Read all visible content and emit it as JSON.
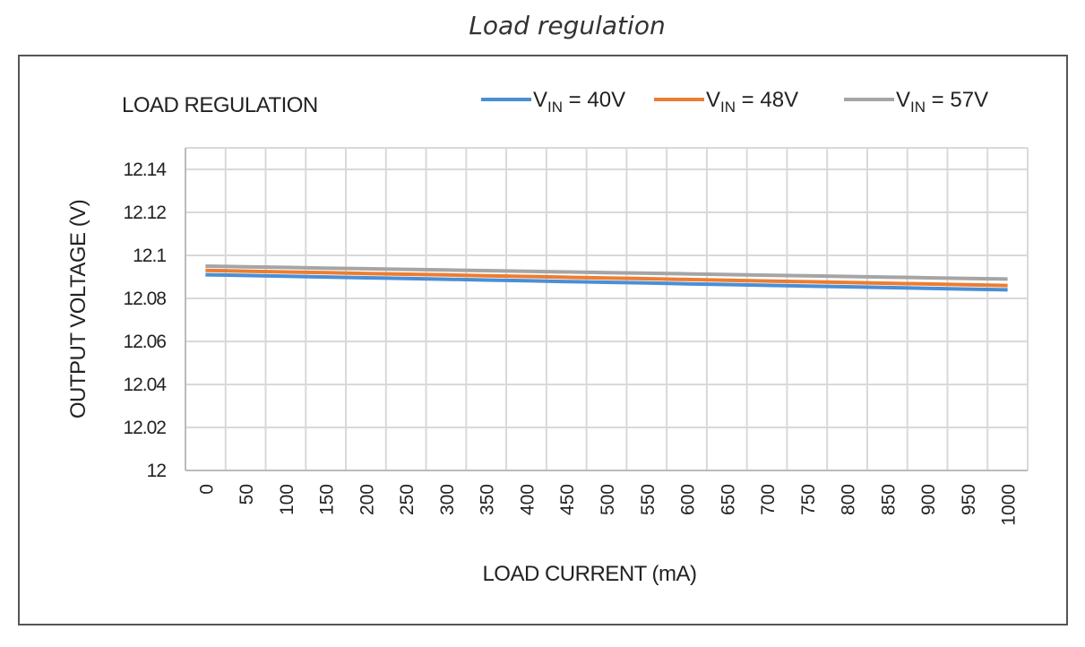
{
  "caption": "Load regulation",
  "chart_data": {
    "type": "line",
    "title": "LOAD REGULATION",
    "xlabel": "LOAD CURRENT (mA)",
    "ylabel": "OUTPUT VOLTAGE (V)",
    "categories": [
      "0",
      "50",
      "100",
      "150",
      "200",
      "250",
      "300",
      "350",
      "400",
      "450",
      "500",
      "550",
      "600",
      "650",
      "700",
      "750",
      "800",
      "850",
      "900",
      "950",
      "1000"
    ],
    "yticks": [
      "12",
      "12.02",
      "12.04",
      "12.06",
      "12.08",
      "12.1",
      "12.12",
      "12.14"
    ],
    "ylim": [
      12,
      12.15
    ],
    "grid": true,
    "legend_position": "top-right",
    "series": [
      {
        "name_main": "V",
        "name_sub": "IN",
        "name_rest": " = 40V",
        "color": "#4a8fd6",
        "start": 12.091,
        "end": 12.084
      },
      {
        "name_main": "V",
        "name_sub": "IN",
        "name_rest": " = 48V",
        "color": "#ed7d31",
        "start": 12.093,
        "end": 12.086
      },
      {
        "name_main": "V",
        "name_sub": "IN",
        "name_rest": " = 57V",
        "color": "#a5a5a5",
        "start": 12.095,
        "end": 12.089
      }
    ]
  }
}
